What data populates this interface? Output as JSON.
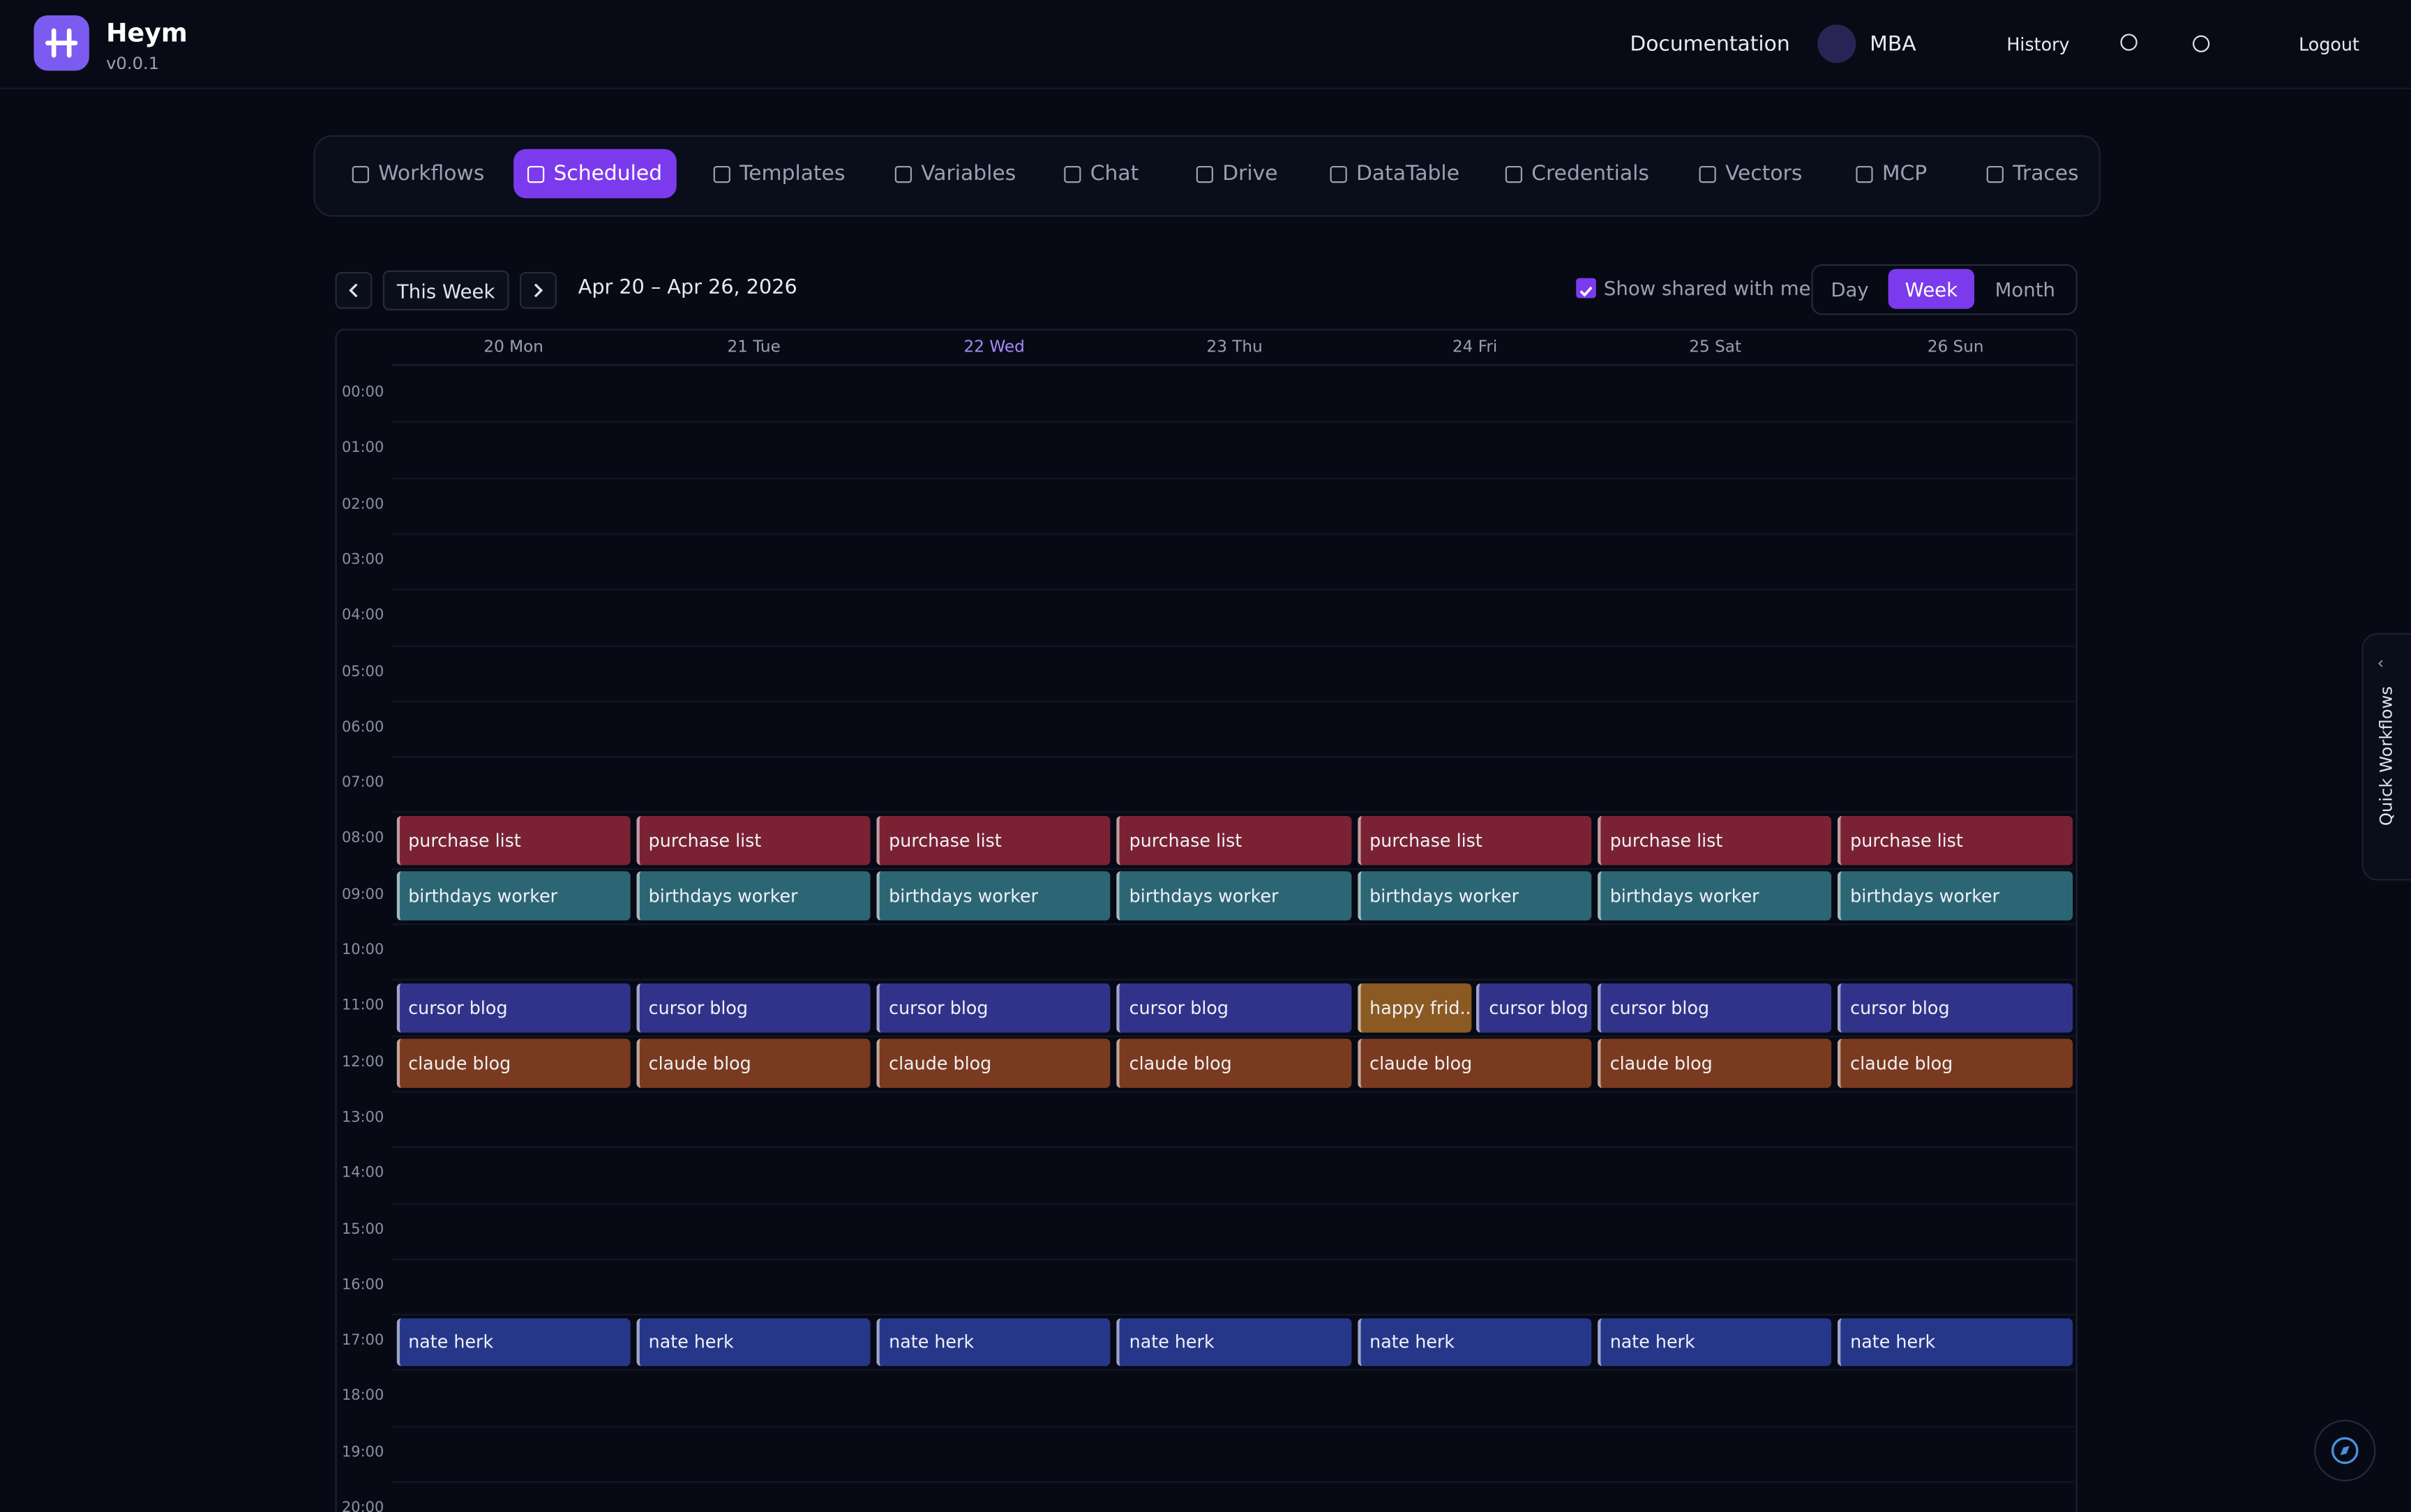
{
  "header": {
    "app_name": "Heym",
    "version": "v0.0.1",
    "nav": [
      "Documentation",
      "MBA",
      "History",
      "Logout"
    ]
  },
  "tabs": {
    "items": [
      "Workflows",
      "Scheduled",
      "Templates",
      "Variables",
      "Chat",
      "Drive",
      "DataTable",
      "Credentials",
      "Vectors",
      "MCP",
      "Traces"
    ],
    "active": "Scheduled"
  },
  "toolbar": {
    "current": "This Week",
    "range": "Apr 20 – Apr 26, 2026",
    "shared_toggle": "Show shared with me",
    "views": [
      "Day",
      "Week",
      "Month"
    ],
    "active_view": "Week"
  },
  "calendar": {
    "days": [
      "20 Mon",
      "21 Tue",
      "22 Wed",
      "23 Thu",
      "24 Fri",
      "25 Sat",
      "26 Sun"
    ],
    "today": "22 Wed",
    "hours": [
      {
        "label": "00:00"
      },
      {
        "label": "01:00"
      },
      {
        "label": "02:00"
      },
      {
        "label": "03:00"
      },
      {
        "label": "04:00"
      },
      {
        "label": "05:00"
      },
      {
        "label": "06:00"
      },
      {
        "label": "07:00"
      },
      {
        "label": "08:00",
        "cells": [
          [
            {
              "name": "purchase list",
              "color": "#7a2233"
            }
          ],
          [
            {
              "name": "purchase list",
              "color": "#7a2233"
            }
          ],
          [
            {
              "name": "purchase list",
              "color": "#7a2233"
            }
          ],
          [
            {
              "name": "purchase list",
              "color": "#7a2233"
            }
          ],
          [
            {
              "name": "purchase list",
              "color": "#7a2233"
            }
          ],
          [
            {
              "name": "purchase list",
              "color": "#7a2233"
            }
          ],
          [
            {
              "name": "purchase list",
              "color": "#7a2233"
            }
          ]
        ]
      },
      {
        "label": "09:00",
        "cells": [
          [
            {
              "name": "birthdays worker",
              "color": "#2c6675"
            }
          ],
          [
            {
              "name": "birthdays worker",
              "color": "#2c6675"
            }
          ],
          [
            {
              "name": "birthdays worker",
              "color": "#2c6675"
            }
          ],
          [
            {
              "name": "birthdays worker",
              "color": "#2c6675"
            }
          ],
          [
            {
              "name": "birthdays worker",
              "color": "#2c6675"
            }
          ],
          [
            {
              "name": "birthdays worker",
              "color": "#2c6675"
            }
          ],
          [
            {
              "name": "birthdays worker",
              "color": "#2c6675"
            }
          ]
        ]
      },
      {
        "label": "10:00"
      },
      {
        "label": "11:00",
        "cells": [
          [
            {
              "name": "cursor blog",
              "color": "#31338a"
            }
          ],
          [
            {
              "name": "cursor blog",
              "color": "#31338a"
            }
          ],
          [
            {
              "name": "cursor blog",
              "color": "#31338a"
            }
          ],
          [
            {
              "name": "cursor blog",
              "color": "#31338a"
            }
          ],
          [
            {
              "name": "happy frid...",
              "color": "#8a5a22"
            },
            {
              "name": "cursor blog",
              "color": "#31338a"
            }
          ],
          [
            {
              "name": "cursor blog",
              "color": "#31338a"
            }
          ],
          [
            {
              "name": "cursor blog",
              "color": "#31338a"
            }
          ]
        ]
      },
      {
        "label": "12:00",
        "cells": [
          [
            {
              "name": "claude blog",
              "color": "#7a3a1f"
            }
          ],
          [
            {
              "name": "claude blog",
              "color": "#7a3a1f"
            }
          ],
          [
            {
              "name": "claude blog",
              "color": "#7a3a1f"
            }
          ],
          [
            {
              "name": "claude blog",
              "color": "#7a3a1f"
            }
          ],
          [
            {
              "name": "claude blog",
              "color": "#7a3a1f"
            }
          ],
          [
            {
              "name": "claude blog",
              "color": "#7a3a1f"
            }
          ],
          [
            {
              "name": "claude blog",
              "color": "#7a3a1f"
            }
          ]
        ]
      },
      {
        "label": "13:00"
      },
      {
        "label": "14:00"
      },
      {
        "label": "15:00"
      },
      {
        "label": "16:00"
      },
      {
        "label": "17:00",
        "cells": [
          [
            {
              "name": "nate herk",
              "color": "#26378a"
            }
          ],
          [
            {
              "name": "nate herk",
              "color": "#26378a"
            }
          ],
          [
            {
              "name": "nate herk",
              "color": "#26378a"
            }
          ],
          [
            {
              "name": "nate herk",
              "color": "#26378a"
            }
          ],
          [
            {
              "name": "nate herk",
              "color": "#26378a"
            }
          ],
          [
            {
              "name": "nate herk",
              "color": "#26378a"
            }
          ],
          [
            {
              "name": "nate herk",
              "color": "#26378a"
            }
          ]
        ]
      },
      {
        "label": "18:00"
      },
      {
        "label": "19:00"
      },
      {
        "label": "20:00"
      }
    ]
  },
  "side_panel": {
    "label": "Quick Workflows"
  }
}
